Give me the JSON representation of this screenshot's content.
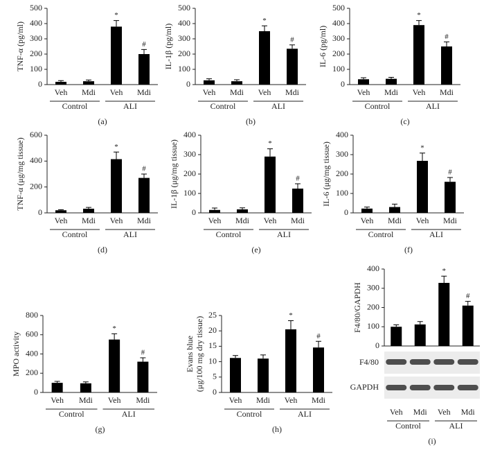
{
  "chart_data": [
    {
      "type": "bar",
      "panel_label": "(a)",
      "ylabel": "TNF-α (pg/ml)",
      "categories": [
        "Veh",
        "Mdi",
        "Veh",
        "Mdi"
      ],
      "groups": [
        "Control",
        "ALI"
      ],
      "values": [
        18,
        22,
        380,
        200
      ],
      "errors": [
        8,
        8,
        40,
        30
      ],
      "annotations": [
        null,
        null,
        "*",
        "#"
      ],
      "ylim": [
        0,
        500
      ],
      "yticks": [
        0,
        100,
        200,
        300,
        400,
        500
      ],
      "color": "#000000"
    },
    {
      "type": "bar",
      "panel_label": "(b)",
      "ylabel": "IL-1β (pg/ml)",
      "categories": [
        "Veh",
        "Mdi",
        "Veh",
        "Mdi"
      ],
      "groups": [
        "Control",
        "ALI"
      ],
      "values": [
        28,
        22,
        350,
        235
      ],
      "errors": [
        10,
        10,
        35,
        25
      ],
      "annotations": [
        null,
        null,
        "*",
        "#"
      ],
      "ylim": [
        0,
        500
      ],
      "yticks": [
        0,
        100,
        200,
        300,
        400,
        500
      ],
      "color": "#000000"
    },
    {
      "type": "bar",
      "panel_label": "(c)",
      "ylabel": "IL-6 (pg/ml)",
      "categories": [
        "Veh",
        "Mdi",
        "Veh",
        "Mdi"
      ],
      "groups": [
        "Control",
        "ALI"
      ],
      "values": [
        35,
        38,
        390,
        250
      ],
      "errors": [
        10,
        10,
        30,
        30
      ],
      "annotations": [
        null,
        null,
        "*",
        "#"
      ],
      "ylim": [
        0,
        500
      ],
      "yticks": [
        0,
        100,
        200,
        300,
        400,
        500
      ],
      "color": "#000000"
    },
    {
      "type": "bar",
      "panel_label": "(d)",
      "ylabel": "TNF-α (μg/mg tissue)",
      "categories": [
        "Veh",
        "Mdi",
        "Veh",
        "Mdi"
      ],
      "groups": [
        "Control",
        "ALI"
      ],
      "values": [
        20,
        32,
        415,
        270
      ],
      "errors": [
        5,
        10,
        55,
        30
      ],
      "annotations": [
        null,
        null,
        "*",
        "#"
      ],
      "ylim": [
        0,
        600
      ],
      "yticks": [
        0,
        200,
        400,
        600
      ],
      "color": "#000000"
    },
    {
      "type": "bar",
      "panel_label": "(e)",
      "ylabel": "IL-1β (μg/mg tissue)",
      "categories": [
        "Veh",
        "Mdi",
        "Veh",
        "Mdi"
      ],
      "groups": [
        "Control",
        "ALI"
      ],
      "values": [
        15,
        18,
        290,
        125
      ],
      "errors": [
        10,
        8,
        40,
        25
      ],
      "annotations": [
        null,
        null,
        "*",
        "#"
      ],
      "ylim": [
        0,
        400
      ],
      "yticks": [
        0,
        100,
        200,
        300,
        400
      ],
      "color": "#000000"
    },
    {
      "type": "bar",
      "panel_label": "(f)",
      "ylabel": "IL-6 (μg/mg tissue)",
      "categories": [
        "Veh",
        "Mdi",
        "Veh",
        "Mdi"
      ],
      "groups": [
        "Control",
        "ALI"
      ],
      "values": [
        22,
        30,
        268,
        160
      ],
      "errors": [
        8,
        15,
        40,
        22
      ],
      "annotations": [
        null,
        null,
        "*",
        "#"
      ],
      "ylim": [
        0,
        400
      ],
      "yticks": [
        0,
        100,
        200,
        300,
        400
      ],
      "color": "#000000"
    },
    {
      "type": "bar",
      "panel_label": "(g)",
      "ylabel": "MPO activity",
      "categories": [
        "Veh",
        "Mdi",
        "Veh",
        "Mdi"
      ],
      "groups": [
        "Control",
        "ALI"
      ],
      "values": [
        100,
        95,
        550,
        320
      ],
      "errors": [
        15,
        15,
        60,
        40
      ],
      "annotations": [
        null,
        null,
        "*",
        "#"
      ],
      "ylim": [
        0,
        800
      ],
      "yticks": [
        0,
        200,
        400,
        600,
        800
      ],
      "color": "#000000"
    },
    {
      "type": "bar",
      "panel_label": "(h)",
      "ylabel": [
        "Evans blue",
        "(μg/100 mg dry tissue)"
      ],
      "categories": [
        "Veh",
        "Mdi",
        "Veh",
        "Mdi"
      ],
      "groups": [
        "Control",
        "ALI"
      ],
      "values": [
        11.2,
        11,
        20.5,
        14.6
      ],
      "errors": [
        0.8,
        1.2,
        2.8,
        2.0
      ],
      "annotations": [
        null,
        null,
        "*",
        "#"
      ],
      "ylim": [
        0,
        25
      ],
      "yticks": [
        0,
        5,
        10,
        15,
        20,
        25
      ],
      "color": "#000000"
    },
    {
      "type": "bar",
      "panel_label": "(i)",
      "ylabel": "F4/80/GAPDH",
      "categories": [
        "Veh",
        "Mdi",
        "Veh",
        "Mdi"
      ],
      "groups": [
        "Control",
        "ALI"
      ],
      "values": [
        100,
        112,
        328,
        210
      ],
      "errors": [
        10,
        15,
        35,
        22
      ],
      "annotations": [
        null,
        null,
        "*",
        "#"
      ],
      "ylim": [
        0,
        400
      ],
      "yticks": [
        0,
        100,
        200,
        300,
        400
      ],
      "color": "#000000",
      "blot_labels": [
        "F4/80",
        "GAPDH"
      ]
    }
  ]
}
